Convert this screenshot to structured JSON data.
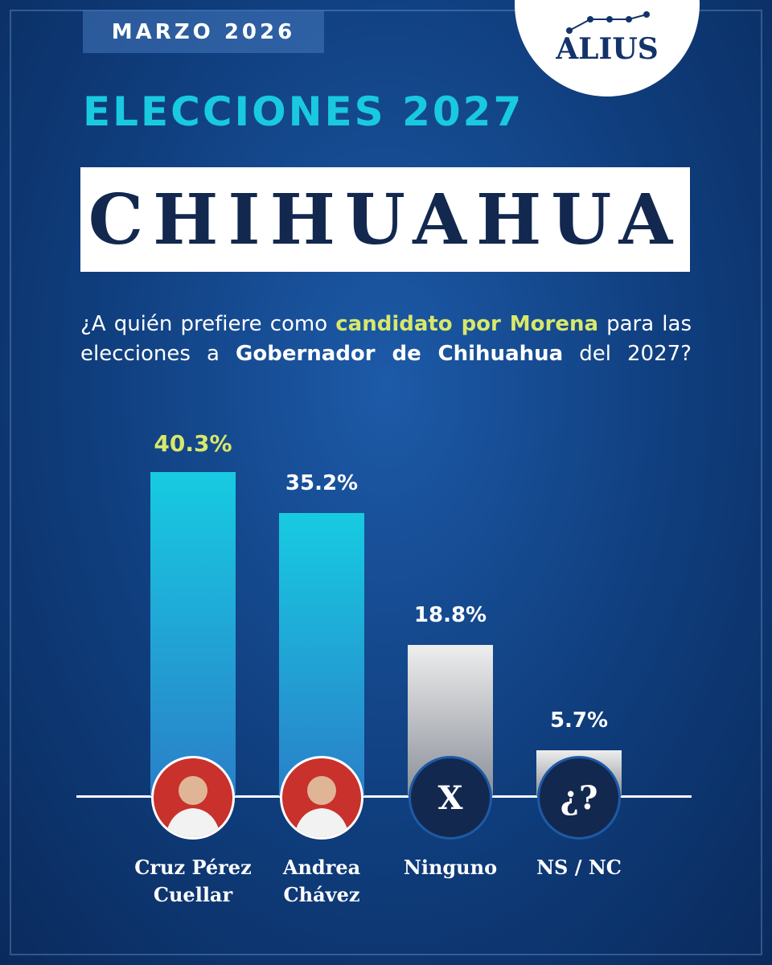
{
  "header": {
    "date": "MARZO 2026",
    "brand": "ALIUS"
  },
  "chart_data": {
    "type": "bar",
    "title": "ELECCIONES 2027",
    "subtitle": "CHIHUAHUA",
    "question_parts": [
      "¿A quién prefiere como ",
      "candidato por Morena",
      " para las elecciones a ",
      "Gobernador de Chihuahua",
      " del 2027?"
    ],
    "categories": [
      "Cruz Pérez Cuellar",
      "Andrea Chávez",
      "Ninguno",
      "NS / NC"
    ],
    "values": [
      40.3,
      35.2,
      18.8,
      5.7
    ],
    "value_labels": [
      "40.3%",
      "35.2%",
      "18.8%",
      "5.7%"
    ],
    "colors": [
      "#17cbe2",
      "#17cbe2",
      "#eeeeee",
      "#eeeeee"
    ],
    "icon_labels": [
      "X",
      "¿?"
    ]
  }
}
